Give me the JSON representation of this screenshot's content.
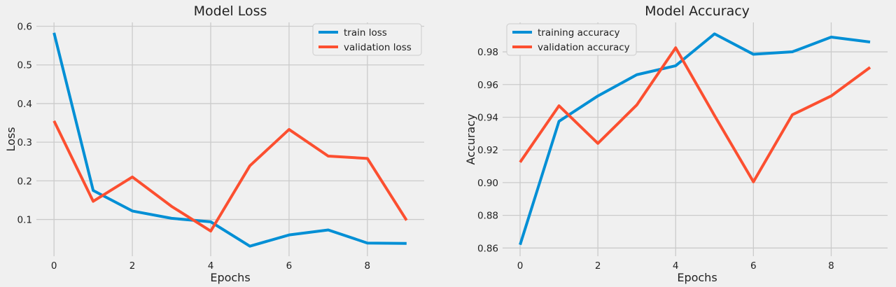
{
  "chart_data": [
    {
      "type": "line",
      "title": "Model Loss",
      "xlabel": "Epochs",
      "ylabel": "Loss",
      "x": [
        0,
        1,
        2,
        3,
        4,
        5,
        6,
        7,
        8,
        9
      ],
      "xticks": [
        0,
        2,
        4,
        6,
        8
      ],
      "yticks": [
        0.1,
        0.2,
        0.3,
        0.4,
        0.5,
        0.6
      ],
      "ytick_labels": [
        "0.1",
        "0.2",
        "0.3",
        "0.4",
        "0.5",
        "0.6"
      ],
      "xlim": [
        -0.45,
        9.45
      ],
      "ylim": [
        0.005,
        0.61
      ],
      "grid": true,
      "legend_position": "top-right",
      "series": [
        {
          "name": "train loss",
          "color": "#008fd5",
          "values": [
            0.583,
            0.175,
            0.122,
            0.103,
            0.094,
            0.031,
            0.06,
            0.073,
            0.039,
            0.038
          ]
        },
        {
          "name": "validation loss",
          "color": "#fc4f30",
          "values": [
            0.355,
            0.147,
            0.21,
            0.134,
            0.07,
            0.239,
            0.333,
            0.264,
            0.258,
            0.098
          ]
        }
      ]
    },
    {
      "type": "line",
      "title": "Model Accuracy",
      "xlabel": "Epochs",
      "ylabel": "Accuracy",
      "x": [
        0,
        1,
        2,
        3,
        4,
        5,
        6,
        7,
        8,
        9
      ],
      "xticks": [
        0,
        2,
        4,
        6,
        8
      ],
      "yticks": [
        0.86,
        0.88,
        0.9,
        0.92,
        0.94,
        0.96,
        0.98
      ],
      "ytick_labels": [
        "0.86",
        "0.88",
        "0.90",
        "0.92",
        "0.94",
        "0.96",
        "0.98"
      ],
      "xlim": [
        -0.45,
        9.45
      ],
      "ylim": [
        0.855,
        0.998
      ],
      "grid": true,
      "legend_position": "top-left",
      "series": [
        {
          "name": "training accuracy",
          "color": "#008fd5",
          "values": [
            0.862,
            0.9375,
            0.953,
            0.966,
            0.9715,
            0.991,
            0.9785,
            0.98,
            0.989,
            0.986
          ]
        },
        {
          "name": "validation accuracy",
          "color": "#fc4f30",
          "values": [
            0.9125,
            0.947,
            0.924,
            0.9475,
            0.9825,
            0.941,
            0.9005,
            0.9415,
            0.953,
            0.9705
          ]
        }
      ]
    }
  ]
}
